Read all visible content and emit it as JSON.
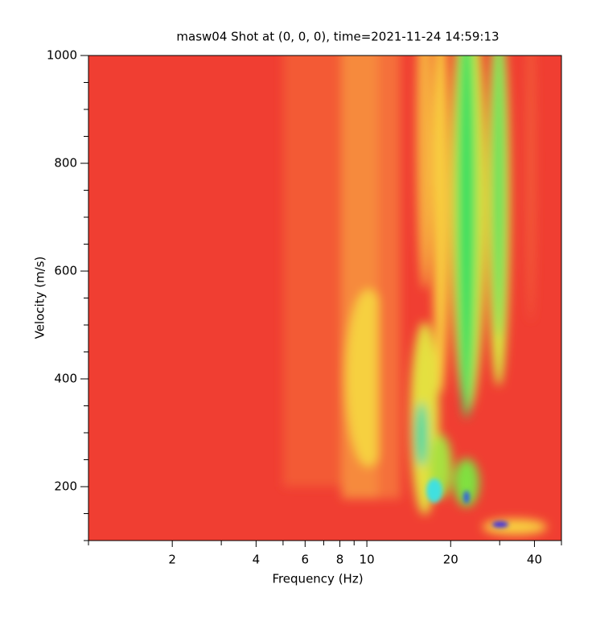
{
  "chart_data": {
    "type": "heatmap",
    "title": "masw04 Shot at (0, 0, 0), time=2021-11-24 14:59:13",
    "xlabel": "Frequency (Hz)",
    "ylabel": "Velocity (m/s)",
    "xscale": "log",
    "xlim": [
      1,
      50
    ],
    "xticks": [
      2,
      4,
      6,
      8,
      10,
      20,
      40
    ],
    "xminorticks": [
      1,
      3,
      5,
      7,
      9,
      30,
      50
    ],
    "ylim": [
      100,
      1000
    ],
    "yticks": [
      200,
      400,
      600,
      800,
      1000
    ],
    "yminorticks": [
      100,
      150,
      250,
      300,
      350,
      450,
      500,
      550,
      650,
      700,
      750,
      850,
      900,
      950
    ]
  }
}
